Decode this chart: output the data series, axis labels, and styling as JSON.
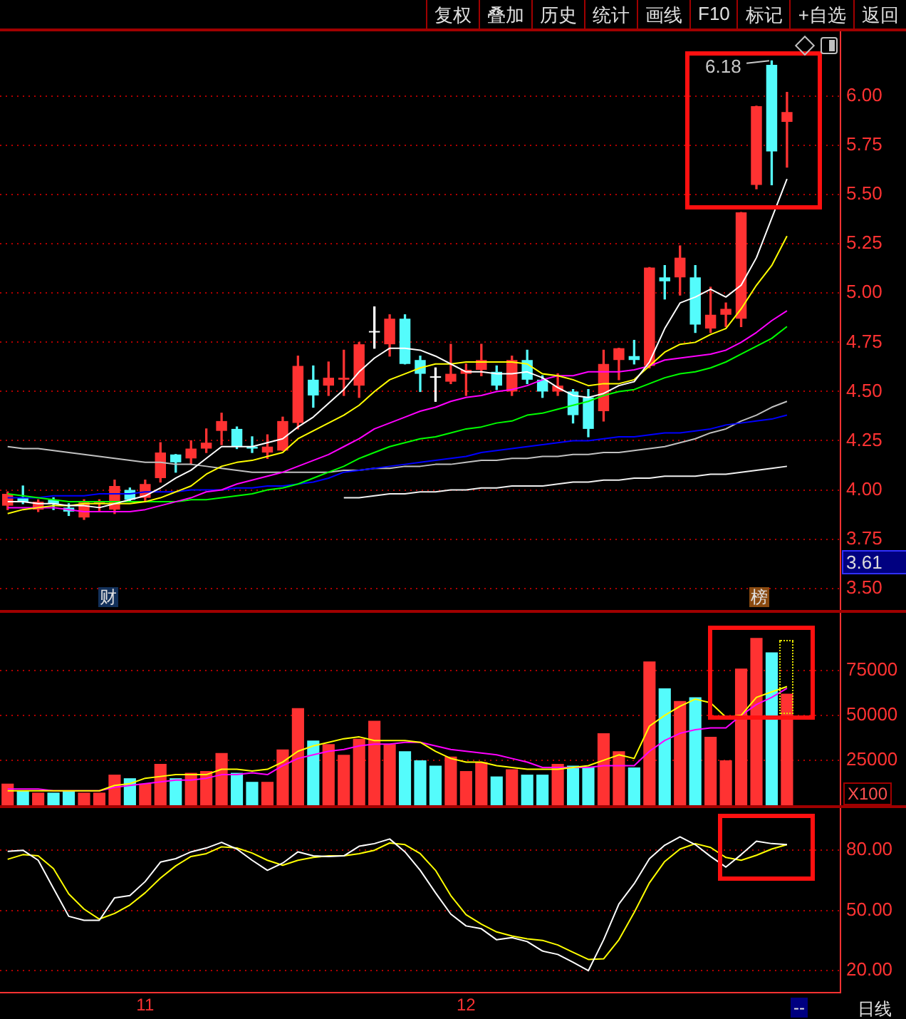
{
  "chart_data": [
    {
      "type": "candlestick",
      "categories": [
        null,
        null,
        null,
        null,
        null,
        null,
        null,
        null,
        null,
        "11",
        null,
        null,
        null,
        null,
        null,
        null,
        null,
        null,
        null,
        null,
        null,
        null,
        null,
        null,
        null,
        null,
        null,
        null,
        null,
        null,
        "12",
        null,
        null,
        null,
        null,
        null,
        null,
        null,
        null,
        null,
        null,
        null,
        null,
        null,
        null,
        null,
        null,
        null,
        null,
        null,
        null,
        null
      ],
      "ohlc": [
        [
          3.92,
          3.99,
          3.9,
          3.98
        ],
        [
          3.96,
          4.02,
          3.93,
          3.94
        ],
        [
          3.9,
          3.95,
          3.89,
          3.94
        ],
        [
          3.95,
          3.96,
          3.9,
          3.93
        ],
        [
          3.91,
          3.93,
          3.87,
          3.89
        ],
        [
          3.86,
          3.95,
          3.85,
          3.94
        ],
        [
          3.93,
          3.95,
          3.89,
          3.93
        ],
        [
          3.9,
          4.05,
          3.88,
          4.02
        ],
        [
          4.0,
          4.01,
          3.94,
          3.95
        ],
        [
          3.96,
          4.05,
          3.94,
          4.03
        ],
        [
          4.06,
          4.24,
          4.04,
          4.19
        ],
        [
          4.18,
          4.18,
          4.09,
          4.14
        ],
        [
          4.16,
          4.25,
          4.13,
          4.21
        ],
        [
          4.21,
          4.31,
          4.19,
          4.24
        ],
        [
          4.3,
          4.39,
          4.23,
          4.35
        ],
        [
          4.31,
          4.32,
          4.21,
          4.22
        ],
        [
          4.22,
          4.27,
          4.19,
          4.21
        ],
        [
          4.19,
          4.28,
          4.16,
          4.22
        ],
        [
          4.2,
          4.37,
          4.2,
          4.35
        ],
        [
          4.34,
          4.68,
          4.31,
          4.63
        ],
        [
          4.56,
          4.63,
          4.42,
          4.48
        ],
        [
          4.53,
          4.65,
          4.48,
          4.57
        ],
        [
          4.56,
          4.71,
          4.48,
          4.57
        ],
        [
          4.53,
          4.75,
          4.47,
          4.74
        ],
        [
          4.8,
          4.93,
          4.72,
          4.8
        ],
        [
          4.74,
          4.89,
          4.68,
          4.87
        ],
        [
          4.87,
          4.89,
          4.64,
          4.64
        ],
        [
          4.66,
          4.68,
          4.5,
          4.59
        ],
        [
          4.57,
          4.62,
          4.45,
          4.57
        ],
        [
          4.55,
          4.74,
          4.54,
          4.59
        ],
        [
          4.59,
          4.64,
          4.48,
          4.61
        ],
        [
          4.61,
          4.74,
          4.58,
          4.66
        ],
        [
          4.6,
          4.63,
          4.51,
          4.53
        ],
        [
          4.5,
          4.68,
          4.48,
          4.66
        ],
        [
          4.66,
          4.71,
          4.54,
          4.56
        ],
        [
          4.56,
          4.58,
          4.47,
          4.5
        ],
        [
          4.5,
          4.59,
          4.48,
          4.53
        ],
        [
          4.5,
          4.51,
          4.34,
          4.38
        ],
        [
          4.47,
          4.51,
          4.27,
          4.31
        ],
        [
          4.4,
          4.71,
          4.35,
          4.64
        ],
        [
          4.66,
          4.72,
          4.56,
          4.72
        ],
        [
          4.68,
          4.76,
          4.64,
          4.66
        ],
        [
          4.63,
          5.13,
          4.62,
          5.13
        ],
        [
          5.08,
          5.14,
          4.97,
          5.06
        ],
        [
          5.08,
          5.24,
          4.99,
          5.18
        ],
        [
          5.08,
          5.14,
          4.8,
          4.84
        ],
        [
          4.82,
          5.03,
          4.8,
          4.89
        ],
        [
          4.89,
          4.95,
          4.83,
          4.92
        ],
        [
          4.87,
          5.41,
          4.83,
          5.41
        ],
        [
          5.55,
          5.95,
          5.53,
          5.95
        ],
        [
          6.16,
          6.18,
          5.55,
          5.72
        ],
        [
          5.87,
          6.02,
          5.64,
          5.92
        ]
      ],
      "colors": [
        "#ff3232",
        "#54fcfc",
        "#ff3232",
        "#54fcfc",
        "#54fcfc",
        "#ff3232",
        "#ff3232",
        "#ff3232",
        "#54fcfc",
        "#ff3232",
        "#ff3232",
        "#54fcfc",
        "#ff3232",
        "#ff3232",
        "#ff3232",
        "#54fcfc",
        "#54fcfc",
        "#ff3232",
        "#ff3232",
        "#ff3232",
        "#54fcfc",
        "#ff3232",
        "#ff3232",
        "#ff3232",
        "#ffffff",
        "#ff3232",
        "#54fcfc",
        "#54fcfc",
        "#ffffff",
        "#ff3232",
        "#ff3232",
        "#ff3232",
        "#54fcfc",
        "#ff3232",
        "#54fcfc",
        "#54fcfc",
        "#ff3232",
        "#54fcfc",
        "#54fcfc",
        "#ff3232",
        "#ff3232",
        "#54fcfc",
        "#ff3232",
        "#54fcfc",
        "#ff3232",
        "#54fcfc",
        "#ff3232",
        "#ff3232",
        "#ff3232",
        "#ff3232",
        "#54fcfc",
        "#ff3232"
      ],
      "series": [
        {
          "type": "line",
          "color": "#ffffff",
          "values": [
            3.94,
            3.94,
            3.93,
            3.93,
            3.92,
            3.92,
            3.91,
            3.93,
            3.95,
            3.97,
            4.01,
            4.06,
            4.1,
            4.16,
            4.22,
            4.22,
            4.22,
            4.24,
            4.26,
            4.32,
            4.37,
            4.44,
            4.51,
            4.6,
            4.67,
            4.72,
            4.72,
            4.71,
            4.68,
            4.64,
            4.6,
            4.6,
            4.59,
            4.59,
            4.6,
            4.57,
            4.52,
            4.48,
            4.47,
            4.49,
            4.53,
            4.55,
            4.65,
            4.82,
            4.95,
            4.98,
            5.02,
            4.98,
            5.04,
            5.18,
            5.38,
            5.58
          ]
        },
        {
          "type": "line",
          "color": "#ffff00",
          "values": [
            3.88,
            3.9,
            3.91,
            3.92,
            3.92,
            3.93,
            3.93,
            3.93,
            3.93,
            3.94,
            3.96,
            3.99,
            4.02,
            4.08,
            4.12,
            4.14,
            4.15,
            4.17,
            4.19,
            4.26,
            4.3,
            4.34,
            4.38,
            4.43,
            4.5,
            4.56,
            4.59,
            4.62,
            4.64,
            4.64,
            4.65,
            4.65,
            4.65,
            4.65,
            4.64,
            4.59,
            4.58,
            4.56,
            4.53,
            4.54,
            4.54,
            4.56,
            4.63,
            4.7,
            4.74,
            4.75,
            4.79,
            4.82,
            4.92,
            5.04,
            5.14,
            5.29
          ]
        },
        {
          "type": "line",
          "color": "#ff00ff",
          "values": [
            3.91,
            3.91,
            3.91,
            3.91,
            3.9,
            3.89,
            3.89,
            3.89,
            3.89,
            3.9,
            3.92,
            3.94,
            3.96,
            3.99,
            4.0,
            4.03,
            4.05,
            4.07,
            4.09,
            4.12,
            4.15,
            4.18,
            4.22,
            4.26,
            4.31,
            4.34,
            4.37,
            4.4,
            4.42,
            4.45,
            4.47,
            4.48,
            4.5,
            4.51,
            4.53,
            4.56,
            4.58,
            4.58,
            4.6,
            4.6,
            4.6,
            4.61,
            4.63,
            4.66,
            4.67,
            4.68,
            4.69,
            4.71,
            4.75,
            4.8,
            4.86,
            4.91
          ]
        },
        {
          "type": "line",
          "color": "#00ff00",
          "values": [
            3.98,
            3.97,
            3.96,
            3.95,
            3.94,
            3.94,
            3.94,
            3.94,
            3.94,
            3.94,
            3.94,
            3.94,
            3.95,
            3.95,
            3.96,
            3.97,
            3.98,
            4.0,
            4.01,
            4.03,
            4.06,
            4.09,
            4.12,
            4.16,
            4.19,
            4.22,
            4.24,
            4.26,
            4.27,
            4.29,
            4.31,
            4.32,
            4.34,
            4.35,
            4.38,
            4.39,
            4.41,
            4.43,
            4.45,
            4.48,
            4.5,
            4.51,
            4.54,
            4.57,
            4.59,
            4.6,
            4.62,
            4.65,
            4.69,
            4.73,
            4.77,
            4.83
          ]
        },
        {
          "type": "line",
          "color": "#0000ff",
          "values": [
            3.96,
            3.96,
            3.96,
            3.97,
            3.97,
            3.97,
            3.98,
            3.98,
            3.98,
            3.99,
            3.99,
            3.99,
            4.0,
            4.0,
            4.0,
            4.01,
            4.01,
            4.02,
            4.02,
            4.03,
            4.04,
            4.06,
            4.09,
            4.1,
            4.11,
            4.12,
            4.13,
            4.14,
            4.15,
            4.16,
            4.17,
            4.19,
            4.2,
            4.21,
            4.22,
            4.23,
            4.24,
            4.25,
            4.25,
            4.26,
            4.27,
            4.27,
            4.28,
            4.29,
            4.29,
            4.3,
            4.31,
            4.33,
            4.34,
            4.35,
            4.36,
            4.38
          ]
        },
        {
          "type": "line",
          "color": "#c0c0c0",
          "values": [
            4.22,
            4.21,
            4.21,
            4.2,
            4.19,
            4.18,
            4.17,
            4.16,
            4.15,
            4.14,
            4.14,
            4.13,
            4.13,
            4.12,
            4.11,
            4.1,
            4.09,
            4.09,
            4.09,
            4.09,
            4.09,
            4.09,
            4.1,
            4.1,
            4.11,
            4.11,
            4.12,
            4.12,
            4.13,
            4.13,
            4.14,
            4.15,
            4.15,
            4.16,
            4.16,
            4.17,
            4.17,
            4.18,
            4.18,
            4.19,
            4.19,
            4.2,
            4.21,
            4.22,
            4.24,
            4.26,
            4.29,
            4.31,
            4.35,
            4.38,
            4.42,
            4.45
          ]
        },
        {
          "type": "line",
          "color": "#f0f0f0",
          "values": [
            null,
            null,
            null,
            null,
            null,
            null,
            null,
            null,
            null,
            null,
            null,
            null,
            null,
            null,
            null,
            null,
            null,
            null,
            null,
            null,
            null,
            null,
            3.96,
            3.96,
            3.97,
            3.98,
            3.98,
            3.99,
            3.99,
            4.0,
            4.0,
            4.01,
            4.01,
            4.02,
            4.02,
            4.02,
            4.03,
            4.04,
            4.04,
            4.05,
            4.05,
            4.06,
            4.06,
            4.07,
            4.07,
            4.07,
            4.08,
            4.08,
            4.09,
            4.1,
            4.11,
            4.12
          ]
        }
      ],
      "ylim": [
        3.39,
        6.33
      ],
      "yticks": [
        {
          "value": 3.5,
          "label": "3.50"
        },
        3.75,
        {
          "value": 4,
          "label": "4.00"
        },
        4.25,
        {
          "value": 4.5,
          "label": "4.50"
        },
        4.75,
        {
          "value": 5,
          "label": "5.00"
        },
        5.25,
        {
          "value": 5.5,
          "label": "5.50"
        },
        5.75,
        {
          "value": 6,
          "label": "6.00"
        }
      ],
      "grid": "y",
      "tick_labels": "y",
      "annotations": [
        "复权",
        "叠加",
        "历史",
        "统计",
        "画线",
        "F10",
        "标记",
        "+自选",
        "返回",
        "财",
        "榜",
        "6.18",
        "3.61"
      ]
    },
    {
      "type": "bar",
      "categories": [
        null,
        null,
        null,
        null,
        null,
        null,
        null,
        null,
        null,
        "11",
        null,
        null,
        null,
        null,
        null,
        null,
        null,
        null,
        null,
        null,
        null,
        null,
        null,
        null,
        null,
        null,
        null,
        null,
        null,
        null,
        "12",
        null,
        null,
        null,
        null,
        null,
        null,
        null,
        null,
        null,
        null,
        null,
        null,
        null,
        null,
        null,
        null,
        null,
        null,
        null,
        null,
        null
      ],
      "series": [
        {
          "type": "bar",
          "colors": [
            "#ff3232",
            "#54fcfc",
            "#ff3232",
            "#54fcfc",
            "#54fcfc",
            "#ff3232",
            "#ff3232",
            "#ff3232",
            "#54fcfc",
            "#ff3232",
            "#ff3232",
            "#54fcfc",
            "#ff3232",
            "#ff3232",
            "#ff3232",
            "#54fcfc",
            "#54fcfc",
            "#ff3232",
            "#ff3232",
            "#ff3232",
            "#54fcfc",
            "#ff3232",
            "#ff3232",
            "#ff3232",
            "#ff3232",
            "#ff3232",
            "#54fcfc",
            "#54fcfc",
            "#54fcfc",
            "#ff3232",
            "#ff3232",
            "#ff3232",
            "#54fcfc",
            "#ff3232",
            "#54fcfc",
            "#54fcfc",
            "#ff3232",
            "#54fcfc",
            "#54fcfc",
            "#ff3232",
            "#ff3232",
            "#54fcfc",
            "#ff3232",
            "#54fcfc",
            "#ff3232",
            "#54fcfc",
            "#ff3232",
            "#ff3232",
            "#ff3232",
            "#ff3232",
            "#54fcfc",
            "#ff3232"
          ],
          "values": [
            12000,
            8000,
            7000,
            7000,
            8000,
            7000,
            7000,
            17000,
            15000,
            12000,
            23000,
            15000,
            18000,
            19000,
            29000,
            18000,
            13000,
            13000,
            31000,
            54000,
            36000,
            34000,
            28000,
            37000,
            47000,
            34000,
            30000,
            25000,
            22000,
            27000,
            19000,
            24000,
            16000,
            20000,
            17000,
            17000,
            23000,
            22000,
            21000,
            40000,
            30000,
            21000,
            80000,
            65000,
            58000,
            60000,
            38000,
            25000,
            76000,
            93000,
            85000,
            62000
          ]
        },
        {
          "type": "line",
          "color": "#ffff00",
          "values": [
            8000,
            8000,
            8000,
            8000,
            8000,
            8000,
            8000,
            11000,
            12000,
            15000,
            16000,
            17000,
            17000,
            17000,
            20000,
            20000,
            19000,
            20000,
            24000,
            30000,
            33000,
            35000,
            37000,
            38000,
            36000,
            36000,
            36000,
            35000,
            30000,
            26000,
            24000,
            24000,
            22000,
            21000,
            20000,
            20000,
            20000,
            21000,
            22000,
            25000,
            28000,
            26000,
            44000,
            50000,
            55000,
            59000,
            57000,
            49000,
            50000,
            60000,
            63000,
            66000
          ]
        },
        {
          "type": "line",
          "color": "#ff00ff",
          "values": [
            9000,
            9000,
            9000,
            8000,
            8000,
            8000,
            8000,
            10000,
            11000,
            12000,
            13000,
            14000,
            14000,
            15000,
            17000,
            17000,
            18000,
            17000,
            22000,
            26000,
            28000,
            30000,
            31000,
            33000,
            34000,
            34000,
            35000,
            35000,
            33000,
            31000,
            30000,
            29000,
            28000,
            26000,
            24000,
            21000,
            21000,
            21000,
            21000,
            22000,
            22000,
            22000,
            30000,
            36000,
            40000,
            42000,
            43000,
            43000,
            50000,
            56000,
            60000,
            65000
          ]
        }
      ],
      "ylim": [
        0,
        107000
      ],
      "yticks": [
        25000,
        50000,
        75000
      ],
      "grid": "y",
      "tick_labels": "y",
      "annotations": [
        "X100"
      ]
    },
    {
      "type": "line",
      "categories": [
        null,
        null,
        null,
        null,
        null,
        null,
        null,
        null,
        null,
        "11",
        null,
        null,
        null,
        null,
        null,
        null,
        null,
        null,
        null,
        null,
        null,
        null,
        null,
        null,
        null,
        null,
        null,
        null,
        null,
        null,
        "12",
        null,
        null,
        null,
        null,
        null,
        null,
        null,
        null,
        null,
        null,
        null,
        null,
        null,
        null,
        null,
        null,
        null,
        null,
        null,
        null,
        null
      ],
      "series": [
        {
          "color": "#ffffff",
          "values": [
            79.4,
            80,
            75,
            61,
            47.1,
            45.1,
            45.1,
            56.3,
            57.4,
            64.4,
            74.1,
            75.8,
            79.2,
            81.1,
            83.9,
            80.6,
            75,
            70,
            73.6,
            79.2,
            77.2,
            76.9,
            77.2,
            82,
            83.3,
            85.6,
            79.2,
            70,
            58.8,
            48.2,
            42.3,
            40.9,
            35.4,
            36.5,
            34.5,
            29.8,
            28.1,
            24.2,
            20,
            35.4,
            53.2,
            63.3,
            75.8,
            82.5,
            86.7,
            82.8,
            76.9,
            71.6,
            77.8,
            84.5,
            83.3,
            82.8
          ]
        },
        {
          "color": "#ffff00",
          "values": [
            75.5,
            77.8,
            77.2,
            70.8,
            58.2,
            50.7,
            45.7,
            48.5,
            52.7,
            58.8,
            66.1,
            72.2,
            76.9,
            78.3,
            81.7,
            81.1,
            78.6,
            75,
            72.5,
            75,
            76.4,
            77.2,
            77.2,
            78.3,
            80,
            83.6,
            82.8,
            78.3,
            70,
            57.4,
            47.9,
            43.2,
            39.3,
            37.3,
            35.9,
            35.1,
            32.8,
            29.2,
            25.6,
            25.9,
            35.4,
            49,
            63.8,
            74.4,
            80.6,
            83.3,
            81.4,
            76.4,
            75,
            77.5,
            80.6,
            82.8
          ]
        }
      ],
      "ylim": [
        9,
        101
      ],
      "yticks": [
        {
          "value": 20,
          "label": "20.00"
        },
        {
          "value": 50,
          "label": "50.00"
        },
        {
          "value": 80,
          "label": "80.00"
        }
      ],
      "grid": "y",
      "annotations": [
        "--",
        "日线"
      ]
    }
  ]
}
